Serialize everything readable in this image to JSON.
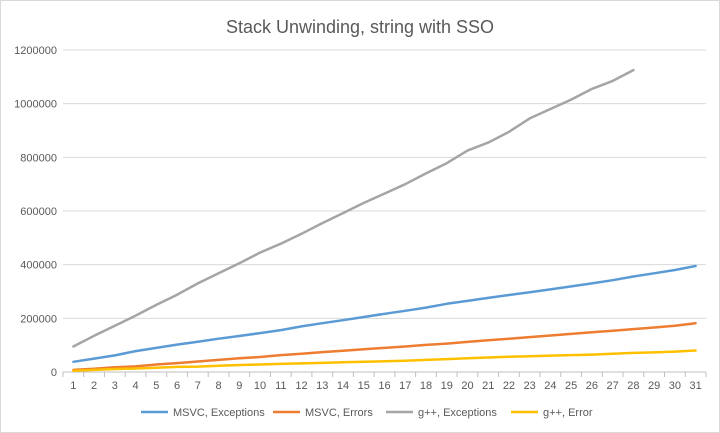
{
  "chart_data": {
    "type": "line",
    "title": "Stack Unwinding, string with SSO",
    "xlabel": "",
    "ylabel": "",
    "ylim": [
      0,
      1200000
    ],
    "yticks": [
      "0",
      "200000",
      "400000",
      "600000",
      "800000",
      "1000000",
      "1200000"
    ],
    "x": [
      "1",
      "2",
      "3",
      "4",
      "5",
      "6",
      "7",
      "8",
      "9",
      "10",
      "11",
      "12",
      "13",
      "14",
      "15",
      "16",
      "17",
      "18",
      "19",
      "20",
      "21",
      "22",
      "23",
      "24",
      "25",
      "26",
      "27",
      "28",
      "29",
      "30",
      "31"
    ],
    "grid": "horizontal",
    "legend_position": "bottom",
    "series": [
      {
        "name": "MSVC, Exceptions",
        "color": "#5b9bd5",
        "values": [
          38000,
          50000,
          62000,
          78000,
          90000,
          102000,
          113000,
          124000,
          134000,
          145000,
          156000,
          170000,
          182000,
          193000,
          205000,
          217000,
          228000,
          240000,
          254000,
          265000,
          276000,
          287000,
          297000,
          308000,
          319000,
          330000,
          342000,
          356000,
          368000,
          380000,
          395000
        ]
      },
      {
        "name": "MSVC, Errors",
        "color": "#ed7d31",
        "values": [
          8000,
          12000,
          18000,
          21000,
          28000,
          33000,
          39000,
          45000,
          51000,
          56000,
          63000,
          68000,
          74000,
          79000,
          85000,
          90000,
          95000,
          101000,
          106000,
          112000,
          118000,
          124000,
          130000,
          136000,
          142000,
          148000,
          154000,
          160000,
          166000,
          172000,
          182000
        ]
      },
      {
        "name": "g++, Exceptions",
        "color": "#a5a5a5",
        "values": [
          95000,
          135000,
          172000,
          210000,
          250000,
          288000,
          330000,
          368000,
          405000,
          445000,
          478000,
          515000,
          555000,
          592000,
          630000,
          665000,
          700000,
          740000,
          778000,
          825000,
          855000,
          895000,
          945000,
          980000,
          1015000,
          1055000,
          1085000,
          1125000,
          null,
          null,
          null
        ]
      },
      {
        "name": "g++, Error",
        "color": "#ffc000",
        "values": [
          5000,
          8000,
          11000,
          13000,
          16000,
          19000,
          20000,
          23000,
          26000,
          28000,
          30000,
          32000,
          34000,
          36000,
          38000,
          40000,
          42000,
          45000,
          48000,
          51000,
          54000,
          57000,
          59000,
          61000,
          63000,
          65000,
          68000,
          71000,
          73000,
          76000,
          80000
        ]
      }
    ]
  }
}
